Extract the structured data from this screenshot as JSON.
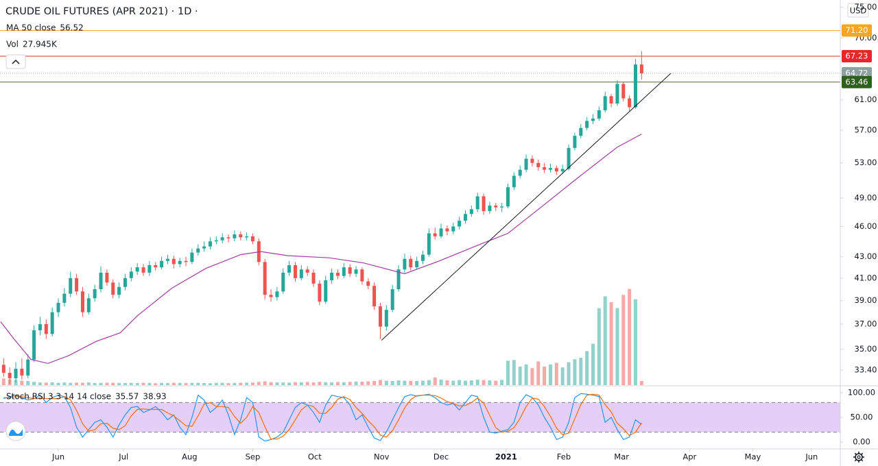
{
  "chart_data": {
    "type": "candlestick",
    "title": "CRUDE OIL FUTURES (APR 2021) · 1D ·",
    "currency": "USD",
    "grid": false,
    "log_scale": true,
    "up_color": "#26a69a",
    "down_color": "#ef5350",
    "xlim": [
      -0.6,
      137.7
    ],
    "xticks": [
      {
        "value": 9.0,
        "label": "Jun"
      },
      {
        "value": 19.75,
        "label": "Jul"
      },
      {
        "value": 30.6,
        "label": "Aug"
      },
      {
        "value": 41.0,
        "label": "Sep"
      },
      {
        "value": 51.2,
        "label": "Oct"
      },
      {
        "value": 62.2,
        "label": "Nov"
      },
      {
        "value": 72.0,
        "label": "Dec"
      },
      {
        "value": 82.7,
        "label": "2021",
        "bold": true
      },
      {
        "value": 92.2,
        "label": "Feb"
      },
      {
        "value": 101.7,
        "label": "Mar"
      },
      {
        "value": 112.9,
        "label": "Apr"
      },
      {
        "value": 123.3,
        "label": "May"
      },
      {
        "value": 133.0,
        "label": "Jun"
      }
    ],
    "ylim": [
      32.3,
      76.2
    ],
    "yticks": [
      {
        "value": 75,
        "label": "75.00"
      },
      {
        "value": 70,
        "label": "70.00"
      },
      {
        "value": 61,
        "label": "61.00"
      },
      {
        "value": 57,
        "label": "57.00"
      },
      {
        "value": 53,
        "label": "53.00"
      },
      {
        "value": 49,
        "label": "49.00"
      },
      {
        "value": 46,
        "label": "46.00"
      },
      {
        "value": 43,
        "label": "43.00"
      },
      {
        "value": 41,
        "label": "41.00"
      },
      {
        "value": 39,
        "label": "39.00"
      },
      {
        "value": 37,
        "label": "37.00"
      },
      {
        "value": 35,
        "label": "35.00"
      },
      {
        "value": 33.4,
        "label": "33.40"
      }
    ],
    "open": [
      33.8,
      33.2,
      32.8,
      33.5,
      33.0,
      34.2,
      36.5,
      37.0,
      36.2,
      38.0,
      38.8,
      39.6,
      41.0,
      39.8,
      38.0,
      39.2,
      40.0,
      41.5,
      40.6,
      39.5,
      40.2,
      41.0,
      41.6,
      42.0,
      41.5,
      42.2,
      42.0,
      42.6,
      42.8,
      42.3,
      42.6,
      42.5,
      43.4,
      43.8,
      44.0,
      44.5,
      44.6,
      44.9,
      44.8,
      45.2,
      44.9,
      45.0,
      44.5,
      42.5,
      39.5,
      39.3,
      39.8,
      41.5,
      42.2,
      41.0,
      41.8,
      41.5,
      40.5,
      38.9,
      40.8,
      41.5,
      41.2,
      42.0,
      41.4,
      41.8,
      40.7,
      40.3,
      38.5,
      36.8,
      38.2,
      40.0,
      41.8,
      42.8,
      42.0,
      42.6,
      43.2,
      45.3,
      45.0,
      45.8,
      45.5,
      46.0,
      46.6,
      47.3,
      47.8,
      49.2,
      47.6,
      48.2,
      48.0,
      48.1,
      50.2,
      51.5,
      52.2,
      53.5,
      53.0,
      52.5,
      52.2,
      52.4,
      52.0,
      52.3,
      54.8,
      56.3,
      57.3,
      58.2,
      58.5,
      59.6,
      61.5,
      60.5,
      63.2,
      61.2,
      60.0,
      66.0
    ],
    "high": [
      34.3,
      33.6,
      34.0,
      34.3,
      34.6,
      36.9,
      37.6,
      37.4,
      38.4,
      39.2,
      40.1,
      41.6,
      41.4,
      40.2,
      39.6,
      40.4,
      42.1,
      41.8,
      40.9,
      40.6,
      41.4,
      42.0,
      42.4,
      42.3,
      42.6,
      42.5,
      43.0,
      43.2,
      43.1,
      42.9,
      43.0,
      43.8,
      44.2,
      44.5,
      44.9,
      45.0,
      45.3,
      45.2,
      45.6,
      45.5,
      45.4,
      45.3,
      44.8,
      42.8,
      40.0,
      40.2,
      41.9,
      42.6,
      42.5,
      42.2,
      42.1,
      41.8,
      40.8,
      41.2,
      41.9,
      41.8,
      42.4,
      42.3,
      42.1,
      42.0,
      41.0,
      40.6,
      38.8,
      38.6,
      40.4,
      42.2,
      43.3,
      43.1,
      43.0,
      43.6,
      45.8,
      45.9,
      46.3,
      46.1,
      46.4,
      47.0,
      47.7,
      48.2,
      49.6,
      49.5,
      48.6,
      48.5,
      48.5,
      50.6,
      51.9,
      52.7,
      54.0,
      53.9,
      53.4,
      53.0,
      52.9,
      52.7,
      52.8,
      55.2,
      56.7,
      57.8,
      58.7,
      59.1,
      60.1,
      62.1,
      61.8,
      63.7,
      63.5,
      61.6,
      66.8,
      67.98
    ],
    "low": [
      32.9,
      32.4,
      32.5,
      32.7,
      32.8,
      34.0,
      36.1,
      35.8,
      36.0,
      37.6,
      38.5,
      39.3,
      39.5,
      37.6,
      37.8,
      38.9,
      39.7,
      40.3,
      39.2,
      39.2,
      39.9,
      40.7,
      41.3,
      41.2,
      41.2,
      41.7,
      41.8,
      42.3,
      41.9,
      42.0,
      42.1,
      42.3,
      43.1,
      43.5,
      43.7,
      44.2,
      44.3,
      44.4,
      44.5,
      44.6,
      44.6,
      44.2,
      42.2,
      39.1,
      38.9,
      39.0,
      39.6,
      41.2,
      40.7,
      40.8,
      41.2,
      40.2,
      38.6,
      38.7,
      40.5,
      40.9,
      41.0,
      41.1,
      41.1,
      40.4,
      40.0,
      38.2,
      35.8,
      36.5,
      38.0,
      39.8,
      41.5,
      41.7,
      41.8,
      42.3,
      43.0,
      44.7,
      44.8,
      45.1,
      45.2,
      45.7,
      46.3,
      47.0,
      47.5,
      47.2,
      47.3,
      47.6,
      47.5,
      47.9,
      49.9,
      51.2,
      51.9,
      52.6,
      52.1,
      51.8,
      51.9,
      51.6,
      51.7,
      52.1,
      54.5,
      56.0,
      57.0,
      57.8,
      58.2,
      59.3,
      60.0,
      60.2,
      60.8,
      59.5,
      59.8,
      63.8
    ],
    "close": [
      33.2,
      32.8,
      33.5,
      33.0,
      34.2,
      36.5,
      37.0,
      36.2,
      38.0,
      38.8,
      39.6,
      41.0,
      39.8,
      38.0,
      39.2,
      40.0,
      41.5,
      40.6,
      39.5,
      40.2,
      41.0,
      41.6,
      42.0,
      41.5,
      42.2,
      42.0,
      42.6,
      42.8,
      42.3,
      42.6,
      42.5,
      43.4,
      43.8,
      44.0,
      44.5,
      44.6,
      44.9,
      44.8,
      45.2,
      44.9,
      45.0,
      44.5,
      42.5,
      39.5,
      39.3,
      39.8,
      41.5,
      42.2,
      41.0,
      41.8,
      41.5,
      40.5,
      38.9,
      40.8,
      41.5,
      41.2,
      42.0,
      41.4,
      41.8,
      40.7,
      40.3,
      38.5,
      36.8,
      38.2,
      40.0,
      41.8,
      42.8,
      42.0,
      42.6,
      43.2,
      45.3,
      45.0,
      45.8,
      45.5,
      46.0,
      46.6,
      47.3,
      47.8,
      49.2,
      47.6,
      48.2,
      48.0,
      48.1,
      50.2,
      51.5,
      52.2,
      53.5,
      53.0,
      52.5,
      52.2,
      52.4,
      52.0,
      52.3,
      54.8,
      56.3,
      57.3,
      58.2,
      58.5,
      59.6,
      61.5,
      60.5,
      63.2,
      61.2,
      60.0,
      66.0,
      64.72
    ],
    "volume": {
      "name": "Vol",
      "last_label": "27.945K",
      "vlim": [
        0,
        750000
      ],
      "values": [
        45000,
        40000,
        35000,
        30000,
        28000,
        22000,
        18000,
        17000,
        19000,
        16000,
        18000,
        15000,
        17000,
        16000,
        18000,
        14000,
        15000,
        17000,
        16000,
        15000,
        14000,
        15000,
        14000,
        16000,
        15000,
        13000,
        15000,
        14000,
        16000,
        15000,
        14000,
        15000,
        16000,
        14000,
        13000,
        15000,
        16000,
        14000,
        15000,
        16000,
        17000,
        18000,
        22000,
        26000,
        20000,
        19000,
        18000,
        17000,
        20000,
        19000,
        21000,
        18000,
        22000,
        20000,
        19000,
        21000,
        20000,
        22000,
        24000,
        23000,
        25000,
        28000,
        35000,
        30000,
        28000,
        32000,
        30000,
        29000,
        28000,
        30000,
        34000,
        52000,
        38000,
        32000,
        30000,
        34000,
        30000,
        32000,
        36000,
        34000,
        32000,
        30000,
        35000,
        165000,
        170000,
        125000,
        140000,
        115000,
        160000,
        125000,
        140000,
        150000,
        120000,
        155000,
        175000,
        185000,
        230000,
        280000,
        520000,
        600000,
        560000,
        520000,
        610000,
        650000,
        580000,
        27945
      ]
    },
    "ma": {
      "name": "MA 50 close",
      "color": "#a23ca2",
      "x": [
        -0.5,
        1.7,
        4.5,
        7.3,
        10.7,
        15.2,
        19.2,
        22.0,
        27.7,
        33.3,
        39.0,
        42.3,
        46.8,
        53.6,
        59.3,
        66.0,
        71.7,
        78.4,
        83.0,
        88.6,
        94.2,
        101.0,
        105.0
      ],
      "values": [
        37.2,
        35.8,
        34.2,
        33.9,
        34.5,
        35.6,
        36.3,
        37.7,
        40.1,
        41.9,
        43.2,
        43.5,
        43.1,
        42.9,
        42.4,
        41.4,
        42.6,
        44.2,
        45.3,
        48.1,
        51.1,
        54.9,
        56.52
      ]
    },
    "trendline": {
      "color": "#131722",
      "x": [
        62.2,
        109.8
      ],
      "y": [
        35.7,
        64.7
      ]
    },
    "hlines": [
      {
        "value": 71.2,
        "label": "71.20",
        "color": "#f5a623",
        "tag_color": "#f5a623",
        "style": "solid"
      },
      {
        "value": 67.23,
        "label": "67.23",
        "color": "#e8262c",
        "tag_color": "#e8262c",
        "style": "solid"
      },
      {
        "value": 64.72,
        "label": "64.72",
        "color": "#9aa3a3",
        "tag_color": "#8fa0a0",
        "style": "dotted"
      },
      {
        "value": 63.46,
        "label": "63.46",
        "color": "#4f6b1f",
        "tag_color": "#2f5f1f",
        "style": "solid"
      }
    ],
    "stoch": {
      "name": "Stoch RSI 3 3 14 14 close",
      "ylim": [
        -13.9,
        113.9
      ],
      "yticks": [
        {
          "value": 100,
          "label": "100.00"
        },
        {
          "value": 50,
          "label": "50.00"
        },
        {
          "value": 0,
          "label": "0.00"
        }
      ],
      "bands": [
        20,
        80
      ],
      "band_color": "#e6cff7",
      "series": [
        {
          "color": "#2196f3",
          "values": [
            88,
            92,
            95,
            90,
            85,
            88,
            95,
            80,
            90,
            95,
            92,
            70,
            30,
            10,
            25,
            40,
            45,
            30,
            10,
            35,
            55,
            70,
            72,
            60,
            65,
            72,
            60,
            45,
            55,
            30,
            15,
            50,
            95,
            85,
            60,
            70,
            85,
            55,
            15,
            45,
            90,
            80,
            10,
            2,
            5,
            10,
            20,
            45,
            70,
            80,
            75,
            60,
            40,
            75,
            95,
            92,
            90,
            75,
            45,
            55,
            30,
            8,
            3,
            20,
            45,
            70,
            92,
            96,
            93,
            95,
            97,
            90,
            80,
            75,
            78,
            65,
            80,
            95,
            92,
            50,
            20,
            18,
            22,
            25,
            40,
            80,
            96,
            90,
            75,
            50,
            30,
            5,
            10,
            40,
            90,
            98,
            97,
            95,
            92,
            40,
            50,
            25,
            5,
            10,
            45,
            35.57
          ]
        },
        {
          "color": "#ff6d00",
          "values": [
            90,
            90,
            92,
            92,
            90,
            88,
            89,
            88,
            88,
            88,
            92,
            86,
            64,
            37,
            22,
            25,
            37,
            38,
            28,
            25,
            33,
            53,
            66,
            67,
            66,
            66,
            66,
            59,
            53,
            43,
            33,
            32,
            53,
            77,
            80,
            72,
            72,
            70,
            52,
            38,
            50,
            72,
            60,
            31,
            6,
            6,
            12,
            25,
            45,
            65,
            75,
            72,
            58,
            58,
            70,
            87,
            92,
            86,
            70,
            58,
            43,
            31,
            14,
            10,
            23,
            45,
            69,
            86,
            94,
            95,
            95,
            94,
            89,
            82,
            78,
            73,
            74,
            80,
            89,
            79,
            54,
            29,
            20,
            22,
            29,
            48,
            72,
            89,
            87,
            72,
            52,
            28,
            15,
            18,
            47,
            76,
            95,
            97,
            95,
            76,
            61,
            38,
            27,
            13,
            20,
            38.93
          ]
        }
      ]
    }
  }
}
